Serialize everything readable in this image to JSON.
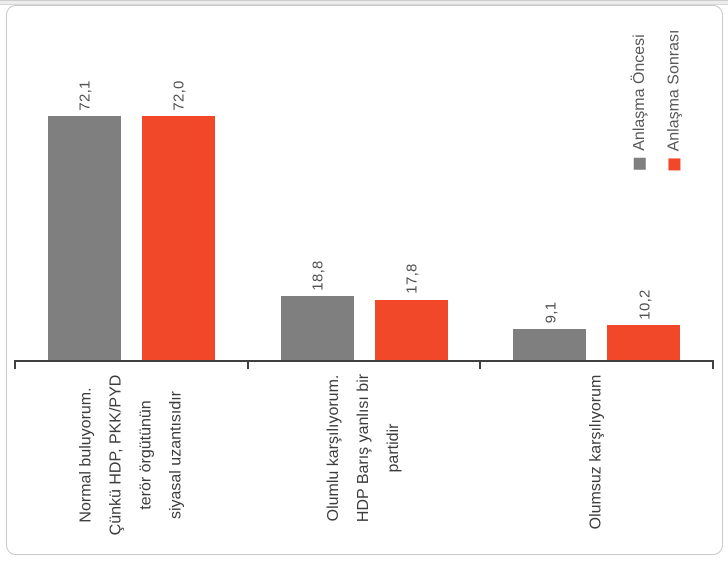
{
  "frame": {
    "background": "#ffffff",
    "border_color": "#c9c9c9",
    "top_strip_color": "#ededed"
  },
  "chart_data": {
    "type": "bar",
    "title": "",
    "xlabel": "",
    "ylabel": "",
    "categories": [
      "Normal buluyorum. Çünkü HDP, PKK/PYD terör örgütünün siyasal uzantısıdır",
      "Olumlu karşılıyorum. HDP Barış yanlısı bir partidir",
      "Olumsuz karşılıyorum"
    ],
    "category_lines": [
      [
        "Normal buluyorum.",
        "Çünkü HDP, PKK/PYD",
        "terör örgütünün",
        "siyasal uzantısıdır"
      ],
      [
        "Olumlu karşılıyorum.",
        "HDP Barış yanlısı bir",
        "partidir"
      ],
      [
        "Olumsuz karşılıyorum"
      ]
    ],
    "series": [
      {
        "name": "Anlaşma Öncesi",
        "color": "#7F7F7F",
        "values": [
          72.1,
          18.8,
          9.1
        ],
        "labels": [
          "72,1",
          "18,8",
          "9,1"
        ]
      },
      {
        "name": "Anlaşma Sonrası",
        "color": "#F04828",
        "values": [
          72.0,
          17.8,
          10.2
        ],
        "labels": [
          "72,0",
          "17,8",
          "10,2"
        ]
      }
    ],
    "ylim": [
      0,
      80
    ],
    "grid": false,
    "y_axis_visible": false,
    "legend_position": "top-right",
    "text_rotation_deg": 270,
    "axis_color": "#404040",
    "value_label_color": "#505050",
    "category_label_color": "#3d3d3d",
    "legend_text_color": "#595959"
  }
}
